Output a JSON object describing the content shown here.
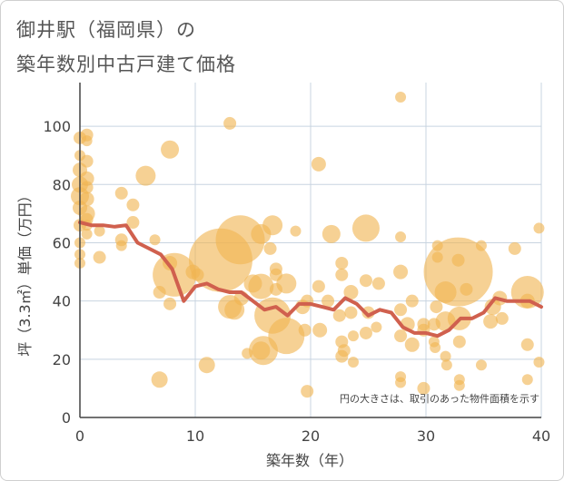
{
  "chart_data": {
    "type": "scatter",
    "title_line1": "御井駅（福岡県）の",
    "title_line2": "築年数別中古戸建て価格",
    "xlabel": "築年数（年）",
    "ylabel": "坪（3.3㎡）単価（万円）",
    "note": "円の大きさは、取引のあった物件面積を示す",
    "xlim": [
      0,
      40
    ],
    "ylim": [
      0,
      115
    ],
    "xticks": [
      0,
      10,
      20,
      30,
      40
    ],
    "yticks": [
      0,
      20,
      40,
      60,
      80,
      100
    ],
    "colors": {
      "bubble": "#f0b552",
      "line": "#d0604e",
      "grid": "#c8d4e0",
      "axis": "#444444"
    },
    "scatter": [
      {
        "x": 0,
        "y": 96,
        "s": 7
      },
      {
        "x": 0,
        "y": 90,
        "s": 6
      },
      {
        "x": 0,
        "y": 85,
        "s": 8
      },
      {
        "x": 0,
        "y": 80,
        "s": 9
      },
      {
        "x": 0,
        "y": 76,
        "s": 10
      },
      {
        "x": 0,
        "y": 72,
        "s": 8
      },
      {
        "x": 0,
        "y": 66,
        "s": 7
      },
      {
        "x": 0,
        "y": 60,
        "s": 6
      },
      {
        "x": 0,
        "y": 56,
        "s": 6
      },
      {
        "x": 0,
        "y": 53,
        "s": 6
      },
      {
        "x": 0.6,
        "y": 97,
        "s": 7
      },
      {
        "x": 0.6,
        "y": 95,
        "s": 6
      },
      {
        "x": 0.6,
        "y": 88,
        "s": 7
      },
      {
        "x": 0.6,
        "y": 82,
        "s": 8
      },
      {
        "x": 0.6,
        "y": 79,
        "s": 7
      },
      {
        "x": 0.6,
        "y": 75,
        "s": 8
      },
      {
        "x": 0.6,
        "y": 70,
        "s": 9
      },
      {
        "x": 0.6,
        "y": 68,
        "s": 7
      },
      {
        "x": 0.6,
        "y": 66,
        "s": 6
      },
      {
        "x": 0.6,
        "y": 63,
        "s": 6
      },
      {
        "x": 1.7,
        "y": 55,
        "s": 7
      },
      {
        "x": 1.7,
        "y": 64,
        "s": 6
      },
      {
        "x": 3.6,
        "y": 77,
        "s": 7
      },
      {
        "x": 3.6,
        "y": 61,
        "s": 7
      },
      {
        "x": 3.6,
        "y": 59,
        "s": 6
      },
      {
        "x": 4.6,
        "y": 73,
        "s": 7
      },
      {
        "x": 4.6,
        "y": 67,
        "s": 7
      },
      {
        "x": 5.7,
        "y": 83,
        "s": 11
      },
      {
        "x": 6.5,
        "y": 61,
        "s": 6
      },
      {
        "x": 6.9,
        "y": 43,
        "s": 7
      },
      {
        "x": 6.9,
        "y": 13,
        "s": 9
      },
      {
        "x": 7.8,
        "y": 92,
        "s": 10
      },
      {
        "x": 7.8,
        "y": 39,
        "s": 7
      },
      {
        "x": 7.8,
        "y": 53,
        "s": 8
      },
      {
        "x": 8.2,
        "y": 49,
        "s": 24
      },
      {
        "x": 9.8,
        "y": 50,
        "s": 8
      },
      {
        "x": 10.2,
        "y": 49,
        "s": 7
      },
      {
        "x": 11,
        "y": 18,
        "s": 9
      },
      {
        "x": 12.2,
        "y": 54,
        "s": 35
      },
      {
        "x": 13,
        "y": 101,
        "s": 7
      },
      {
        "x": 13,
        "y": 38,
        "s": 13
      },
      {
        "x": 13.4,
        "y": 37,
        "s": 11
      },
      {
        "x": 13.9,
        "y": 61,
        "s": 27
      },
      {
        "x": 14,
        "y": 41,
        "s": 8
      },
      {
        "x": 14.5,
        "y": 22,
        "s": 6
      },
      {
        "x": 15,
        "y": 46,
        "s": 10
      },
      {
        "x": 15.7,
        "y": 63,
        "s": 11
      },
      {
        "x": 15.7,
        "y": 45,
        "s": 14
      },
      {
        "x": 15.7,
        "y": 23,
        "s": 10
      },
      {
        "x": 15.9,
        "y": 23,
        "s": 16
      },
      {
        "x": 16.5,
        "y": 58,
        "s": 7
      },
      {
        "x": 16.7,
        "y": 66,
        "s": 11
      },
      {
        "x": 16.7,
        "y": 35,
        "s": 20
      },
      {
        "x": 17,
        "y": 51,
        "s": 7
      },
      {
        "x": 17,
        "y": 49,
        "s": 7
      },
      {
        "x": 17,
        "y": 44,
        "s": 7
      },
      {
        "x": 17.9,
        "y": 46,
        "s": 11
      },
      {
        "x": 17.9,
        "y": 28,
        "s": 20
      },
      {
        "x": 18.7,
        "y": 64,
        "s": 6
      },
      {
        "x": 19.3,
        "y": 38,
        "s": 8
      },
      {
        "x": 19.5,
        "y": 30,
        "s": 7
      },
      {
        "x": 19.7,
        "y": 40,
        "s": 7
      },
      {
        "x": 19.7,
        "y": 9,
        "s": 7
      },
      {
        "x": 20.7,
        "y": 87,
        "s": 8
      },
      {
        "x": 20.7,
        "y": 45,
        "s": 7
      },
      {
        "x": 20.8,
        "y": 30,
        "s": 8
      },
      {
        "x": 21.5,
        "y": 40,
        "s": 7
      },
      {
        "x": 21.8,
        "y": 63,
        "s": 10
      },
      {
        "x": 22.5,
        "y": 35,
        "s": 7
      },
      {
        "x": 22.7,
        "y": 53,
        "s": 7
      },
      {
        "x": 22.7,
        "y": 49,
        "s": 7
      },
      {
        "x": 22.7,
        "y": 26,
        "s": 7
      },
      {
        "x": 22.7,
        "y": 21,
        "s": 7
      },
      {
        "x": 22.9,
        "y": 23,
        "s": 7
      },
      {
        "x": 23.5,
        "y": 43,
        "s": 8
      },
      {
        "x": 23.5,
        "y": 36,
        "s": 7
      },
      {
        "x": 23.7,
        "y": 28,
        "s": 6
      },
      {
        "x": 23.7,
        "y": 19,
        "s": 6
      },
      {
        "x": 24.8,
        "y": 65,
        "s": 15
      },
      {
        "x": 24.8,
        "y": 47,
        "s": 7
      },
      {
        "x": 24.8,
        "y": 29,
        "s": 7
      },
      {
        "x": 25,
        "y": 36,
        "s": 7
      },
      {
        "x": 25.7,
        "y": 31,
        "s": 6
      },
      {
        "x": 25.9,
        "y": 46,
        "s": 7
      },
      {
        "x": 27.8,
        "y": 110,
        "s": 6
      },
      {
        "x": 27.8,
        "y": 62,
        "s": 6
      },
      {
        "x": 27.8,
        "y": 50,
        "s": 8
      },
      {
        "x": 27.8,
        "y": 37,
        "s": 7
      },
      {
        "x": 27.8,
        "y": 28,
        "s": 7
      },
      {
        "x": 27.8,
        "y": 14,
        "s": 6
      },
      {
        "x": 27.8,
        "y": 12,
        "s": 6
      },
      {
        "x": 28.4,
        "y": 32,
        "s": 8
      },
      {
        "x": 28.8,
        "y": 40,
        "s": 7
      },
      {
        "x": 28.8,
        "y": 25,
        "s": 8
      },
      {
        "x": 29.8,
        "y": 30,
        "s": 7
      },
      {
        "x": 29.8,
        "y": 32,
        "s": 7
      },
      {
        "x": 29.8,
        "y": 10,
        "s": 7
      },
      {
        "x": 30.7,
        "y": 32,
        "s": 7
      },
      {
        "x": 30.7,
        "y": 26,
        "s": 6
      },
      {
        "x": 30.8,
        "y": 24,
        "s": 6
      },
      {
        "x": 30.9,
        "y": 38,
        "s": 7
      },
      {
        "x": 31,
        "y": 59,
        "s": 6
      },
      {
        "x": 31,
        "y": 55,
        "s": 6
      },
      {
        "x": 31.7,
        "y": 43,
        "s": 12
      },
      {
        "x": 31.7,
        "y": 33,
        "s": 11
      },
      {
        "x": 31.7,
        "y": 21,
        "s": 6
      },
      {
        "x": 31.8,
        "y": 18,
        "s": 6
      },
      {
        "x": 32.8,
        "y": 50,
        "s": 38
      },
      {
        "x": 32.8,
        "y": 54,
        "s": 7
      },
      {
        "x": 32.9,
        "y": 34,
        "s": 13
      },
      {
        "x": 32.9,
        "y": 26,
        "s": 7
      },
      {
        "x": 32.9,
        "y": 13,
        "s": 6
      },
      {
        "x": 32.9,
        "y": 11,
        "s": 6
      },
      {
        "x": 33.5,
        "y": 44,
        "s": 7
      },
      {
        "x": 34.8,
        "y": 59,
        "s": 6
      },
      {
        "x": 34.8,
        "y": 18,
        "s": 6
      },
      {
        "x": 35.6,
        "y": 33,
        "s": 8
      },
      {
        "x": 35.8,
        "y": 38,
        "s": 9
      },
      {
        "x": 36.4,
        "y": 41,
        "s": 8
      },
      {
        "x": 36.6,
        "y": 34,
        "s": 7
      },
      {
        "x": 37.7,
        "y": 58,
        "s": 7
      },
      {
        "x": 38.8,
        "y": 43,
        "s": 18
      },
      {
        "x": 38.8,
        "y": 40,
        "s": 8
      },
      {
        "x": 38.8,
        "y": 25,
        "s": 7
      },
      {
        "x": 38.8,
        "y": 13,
        "s": 6
      },
      {
        "x": 39.8,
        "y": 65,
        "s": 6
      },
      {
        "x": 39.8,
        "y": 19,
        "s": 6
      }
    ],
    "line": [
      {
        "x": 0,
        "y": 67
      },
      {
        "x": 1,
        "y": 66
      },
      {
        "x": 2,
        "y": 66
      },
      {
        "x": 3,
        "y": 65.5
      },
      {
        "x": 4,
        "y": 66
      },
      {
        "x": 5,
        "y": 60
      },
      {
        "x": 6,
        "y": 58
      },
      {
        "x": 7,
        "y": 56
      },
      {
        "x": 8,
        "y": 51
      },
      {
        "x": 9,
        "y": 40
      },
      {
        "x": 10,
        "y": 45
      },
      {
        "x": 11,
        "y": 46
      },
      {
        "x": 12,
        "y": 44
      },
      {
        "x": 13,
        "y": 43
      },
      {
        "x": 14,
        "y": 43
      },
      {
        "x": 15,
        "y": 40
      },
      {
        "x": 16,
        "y": 37
      },
      {
        "x": 17,
        "y": 38
      },
      {
        "x": 18,
        "y": 35
      },
      {
        "x": 19,
        "y": 39
      },
      {
        "x": 20,
        "y": 39
      },
      {
        "x": 21,
        "y": 38
      },
      {
        "x": 22,
        "y": 37
      },
      {
        "x": 23,
        "y": 41
      },
      {
        "x": 24,
        "y": 39
      },
      {
        "x": 25,
        "y": 35
      },
      {
        "x": 26,
        "y": 37
      },
      {
        "x": 27,
        "y": 36
      },
      {
        "x": 28,
        "y": 31
      },
      {
        "x": 29,
        "y": 29
      },
      {
        "x": 30,
        "y": 29
      },
      {
        "x": 31,
        "y": 28
      },
      {
        "x": 32,
        "y": 30
      },
      {
        "x": 33,
        "y": 34
      },
      {
        "x": 34,
        "y": 34
      },
      {
        "x": 35,
        "y": 36
      },
      {
        "x": 36,
        "y": 41
      },
      {
        "x": 37,
        "y": 40
      },
      {
        "x": 38,
        "y": 40
      },
      {
        "x": 39,
        "y": 40
      },
      {
        "x": 40,
        "y": 38
      }
    ]
  }
}
